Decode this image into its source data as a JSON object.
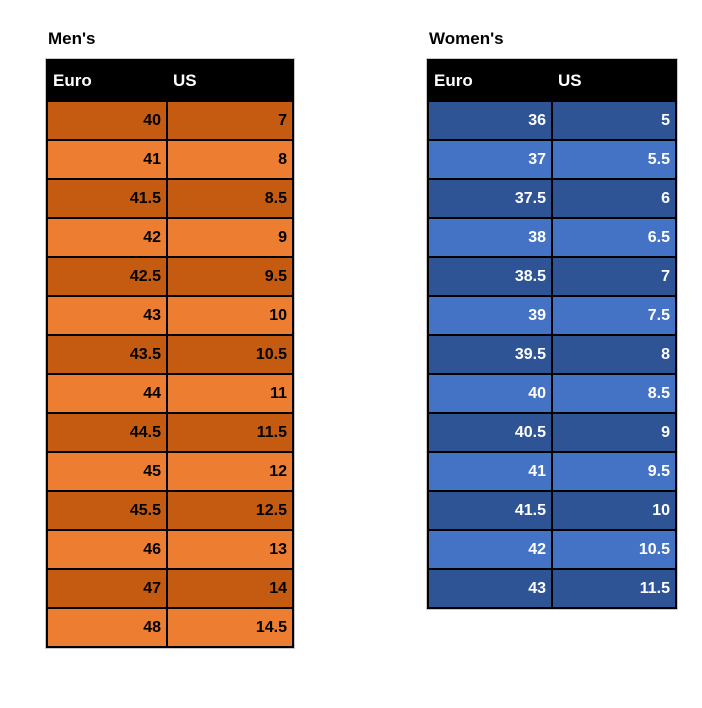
{
  "chart_data": [
    {
      "type": "table",
      "title": "Men's",
      "columns": [
        "Euro",
        "US"
      ],
      "rows": [
        [
          40,
          7
        ],
        [
          41,
          8
        ],
        [
          41.5,
          8.5
        ],
        [
          42,
          9
        ],
        [
          42.5,
          9.5
        ],
        [
          43,
          10
        ],
        [
          43.5,
          10.5
        ],
        [
          44,
          11
        ],
        [
          44.5,
          11.5
        ],
        [
          45,
          12
        ],
        [
          45.5,
          12.5
        ],
        [
          46,
          13
        ],
        [
          47,
          14
        ],
        [
          48,
          14.5
        ]
      ],
      "colors": {
        "header_bg": "#000000",
        "header_text": "#FFFFFF",
        "row_dark": "#C55A11",
        "row_light": "#ED7D31",
        "text": "#000000"
      }
    },
    {
      "type": "table",
      "title": "Women's",
      "columns": [
        "Euro",
        "US"
      ],
      "rows": [
        [
          36,
          5
        ],
        [
          37,
          5.5
        ],
        [
          37.5,
          6
        ],
        [
          38,
          6.5
        ],
        [
          38.5,
          7
        ],
        [
          39,
          7.5
        ],
        [
          39.5,
          8
        ],
        [
          40,
          8.5
        ],
        [
          40.5,
          9
        ],
        [
          41,
          9.5
        ],
        [
          41.5,
          10
        ],
        [
          42,
          10.5
        ],
        [
          43,
          11.5
        ]
      ],
      "colors": {
        "header_bg": "#000000",
        "header_text": "#FFFFFF",
        "row_dark": "#2F5496",
        "row_light": "#4472C4",
        "text": "#FFFFFF"
      }
    }
  ]
}
